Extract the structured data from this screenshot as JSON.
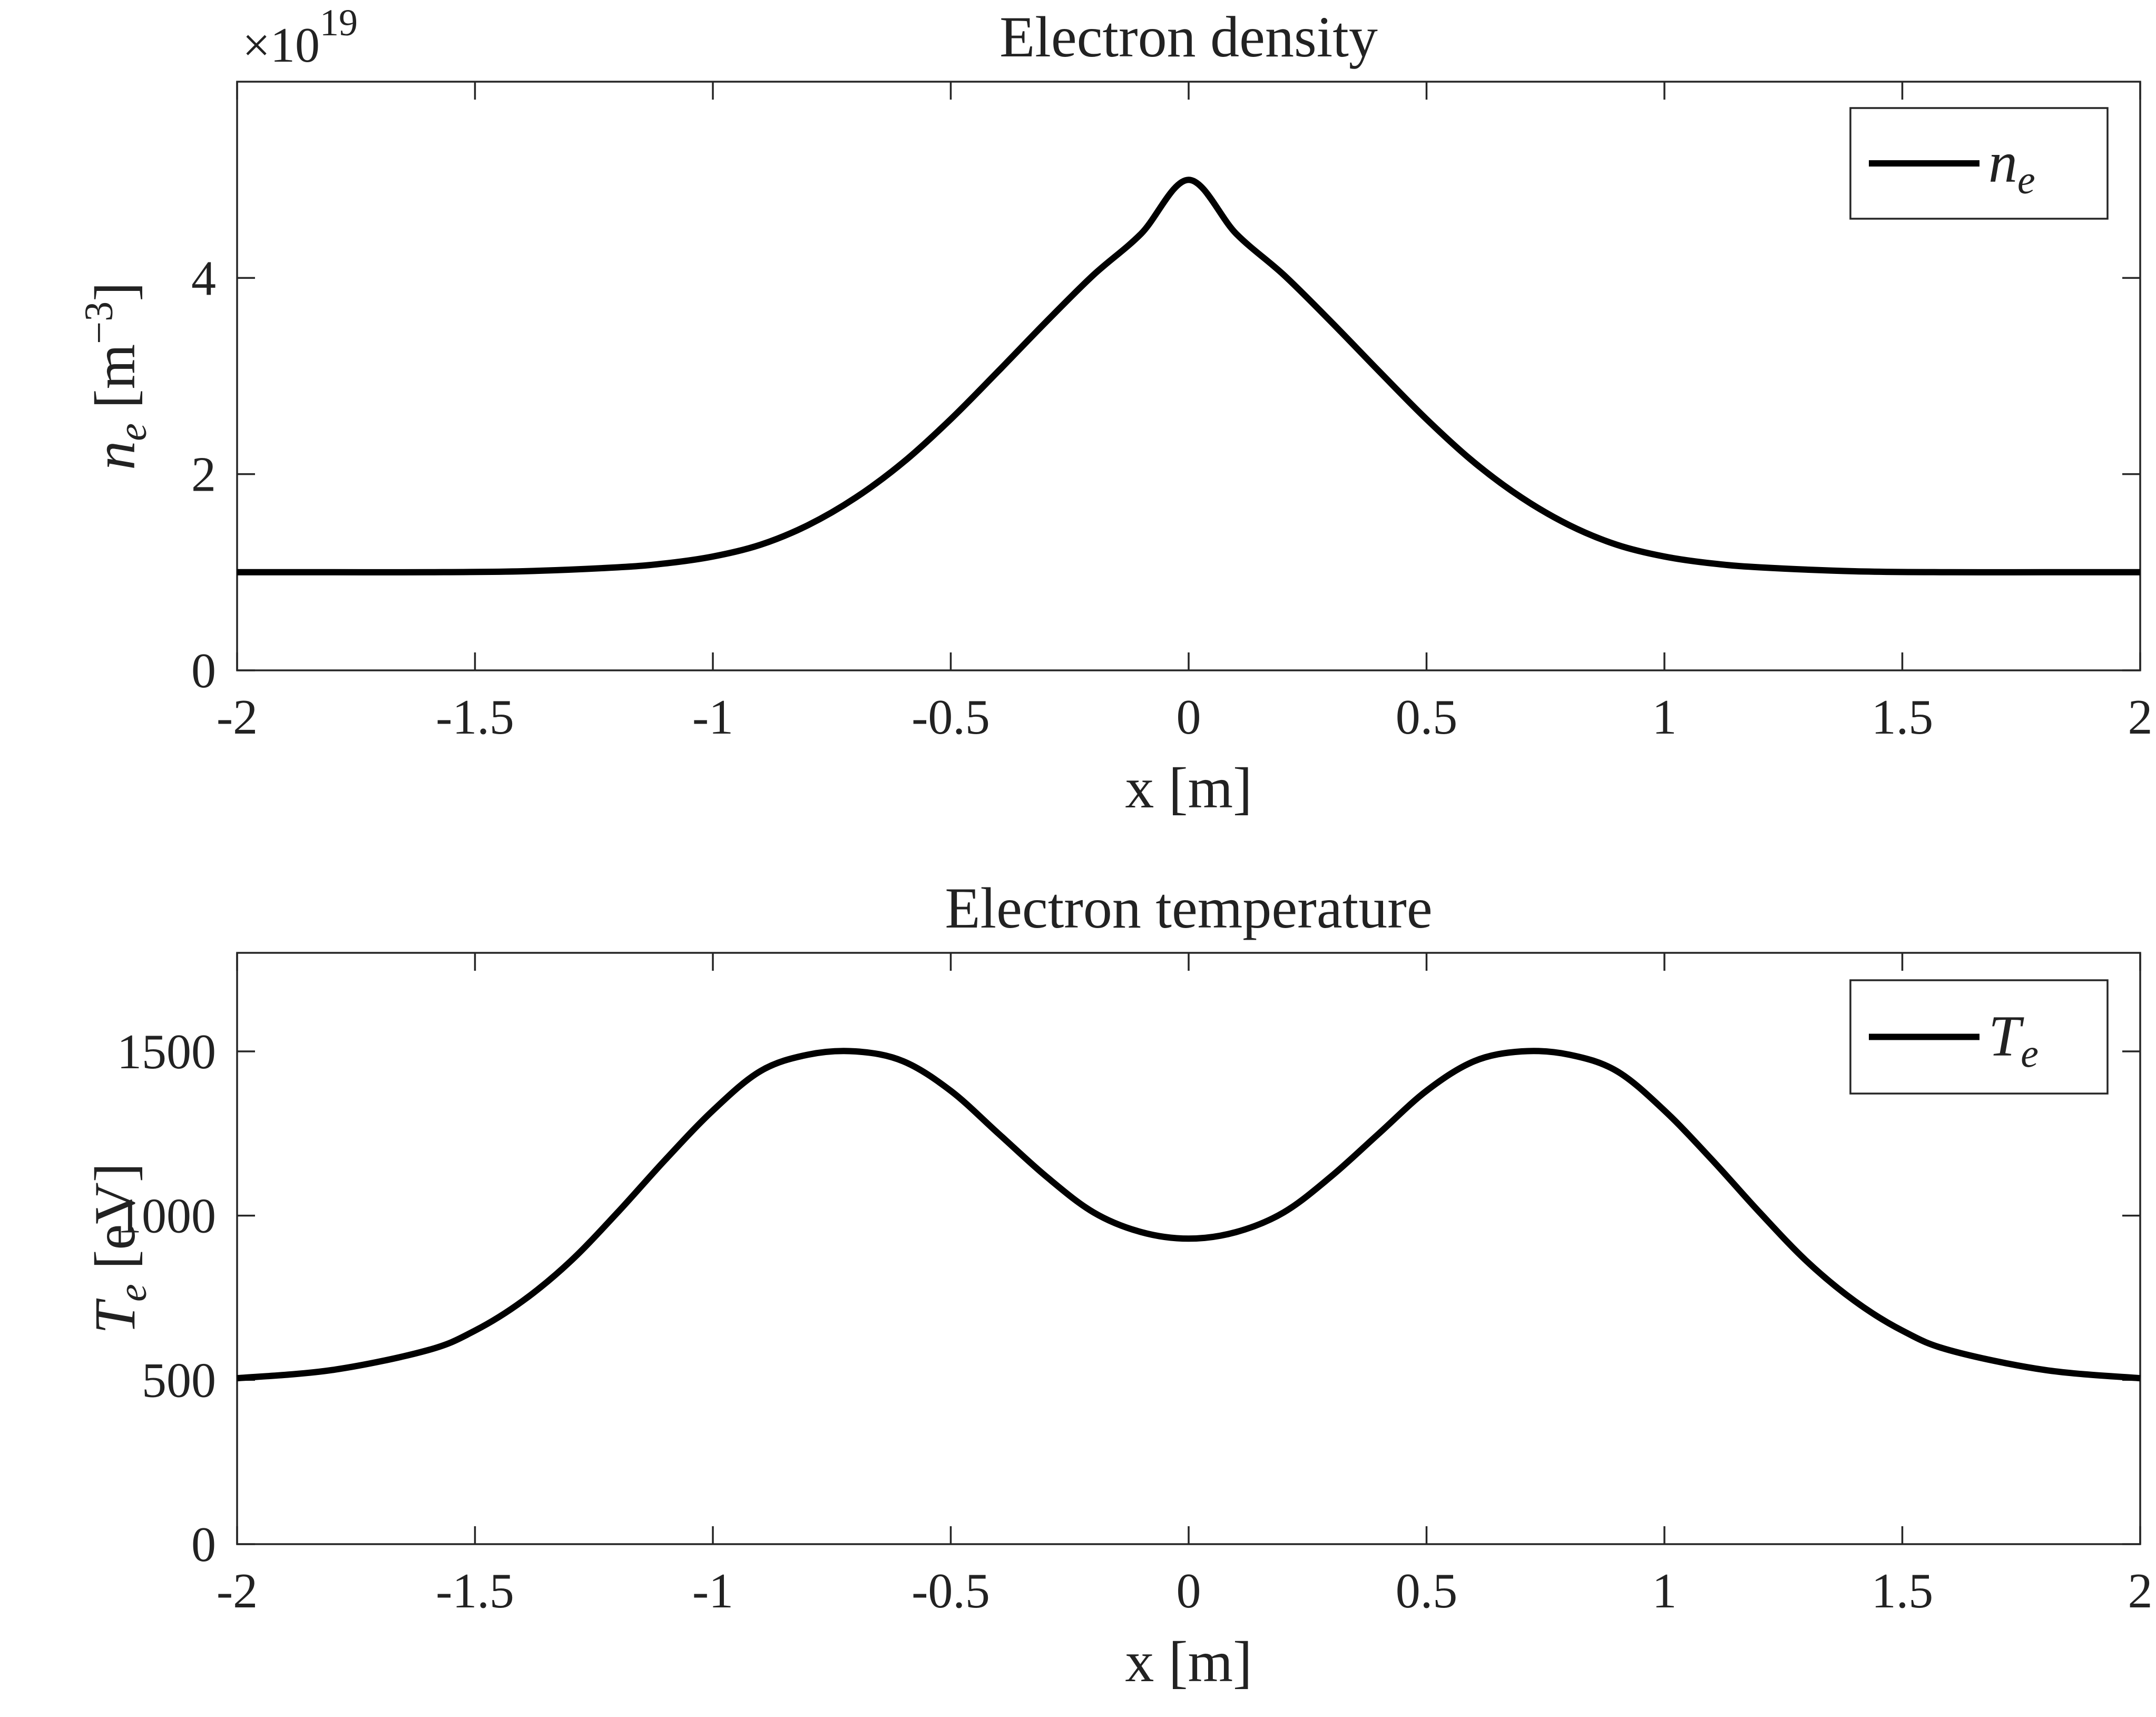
{
  "chart_data": [
    {
      "type": "line",
      "title": "Electron density",
      "xlabel": "x [m]",
      "ylabel_symbol": "n",
      "ylabel_sub": "e",
      "ylabel_unit": "[m",
      "ylabel_unit_sup": "−3",
      "ylabel_unit_close": "]",
      "exponent_base": "×10",
      "exponent_power": "19",
      "xlim": [
        -2,
        2
      ],
      "ylim": [
        0,
        6
      ],
      "xticks": [
        -2,
        -1.5,
        -1,
        -0.5,
        0,
        0.5,
        1,
        1.5,
        2
      ],
      "xtick_labels": [
        "-2",
        "-1.5",
        "-1",
        "-0.5",
        "0",
        "0.5",
        "1",
        "1.5",
        "2"
      ],
      "yticks": [
        0,
        2,
        4
      ],
      "ytick_labels": [
        "0",
        "2",
        "4"
      ],
      "grid": false,
      "legend_position": "top-right",
      "series": [
        {
          "name": "n_e",
          "legend_symbol": "n",
          "legend_sub": "e",
          "color": "#000000",
          "x": [
            -2.0,
            -1.8,
            -1.6,
            -1.4,
            -1.2,
            -1.1,
            -1.0,
            -0.9,
            -0.8,
            -0.7,
            -0.6,
            -0.5,
            -0.4,
            -0.3,
            -0.2,
            -0.1,
            0.0,
            0.1,
            0.2,
            0.3,
            0.4,
            0.5,
            0.6,
            0.7,
            0.8,
            0.9,
            1.0,
            1.1,
            1.2,
            1.4,
            1.6,
            1.8,
            2.0
          ],
          "y": [
            1.0,
            1.0,
            1.0,
            1.01,
            1.05,
            1.09,
            1.16,
            1.28,
            1.48,
            1.76,
            2.12,
            2.56,
            3.05,
            3.55,
            4.03,
            4.45,
            5.0,
            4.45,
            4.03,
            3.55,
            3.05,
            2.56,
            2.12,
            1.76,
            1.48,
            1.28,
            1.16,
            1.09,
            1.05,
            1.01,
            1.0,
            1.0,
            1.0
          ]
        }
      ]
    },
    {
      "type": "line",
      "title": "Electron temperature",
      "xlabel": "x [m]",
      "ylabel_symbol": "T",
      "ylabel_sub": "e",
      "ylabel_unit": "[eV]",
      "xlim": [
        -2,
        2
      ],
      "ylim": [
        0,
        1800
      ],
      "xticks": [
        -2,
        -1.5,
        -1,
        -0.5,
        0,
        0.5,
        1,
        1.5,
        2
      ],
      "xtick_labels": [
        "-2",
        "-1.5",
        "-1",
        "-0.5",
        "0",
        "0.5",
        "1",
        "1.5",
        "2"
      ],
      "yticks": [
        0,
        500,
        1000,
        1500
      ],
      "ytick_labels": [
        "0",
        "500",
        "1000",
        "1500"
      ],
      "grid": false,
      "legend_position": "top-right",
      "series": [
        {
          "name": "T_e",
          "legend_symbol": "T",
          "legend_sub": "e",
          "color": "#000000",
          "x": [
            -2.0,
            -1.8,
            -1.6,
            -1.5,
            -1.4,
            -1.3,
            -1.2,
            -1.1,
            -1.0,
            -0.9,
            -0.8,
            -0.7,
            -0.6,
            -0.5,
            -0.4,
            -0.3,
            -0.2,
            -0.1,
            0.0,
            0.1,
            0.2,
            0.3,
            0.4,
            0.5,
            0.6,
            0.7,
            0.8,
            0.9,
            1.0,
            1.1,
            1.2,
            1.3,
            1.4,
            1.5,
            1.6,
            1.8,
            2.0
          ],
          "y": [
            505,
            530,
            590,
            650,
            740,
            860,
            1010,
            1170,
            1320,
            1440,
            1490,
            1500,
            1470,
            1380,
            1250,
            1120,
            1010,
            950,
            930,
            950,
            1010,
            1120,
            1250,
            1380,
            1470,
            1500,
            1490,
            1440,
            1320,
            1170,
            1010,
            860,
            740,
            650,
            590,
            530,
            505
          ]
        }
      ]
    }
  ]
}
